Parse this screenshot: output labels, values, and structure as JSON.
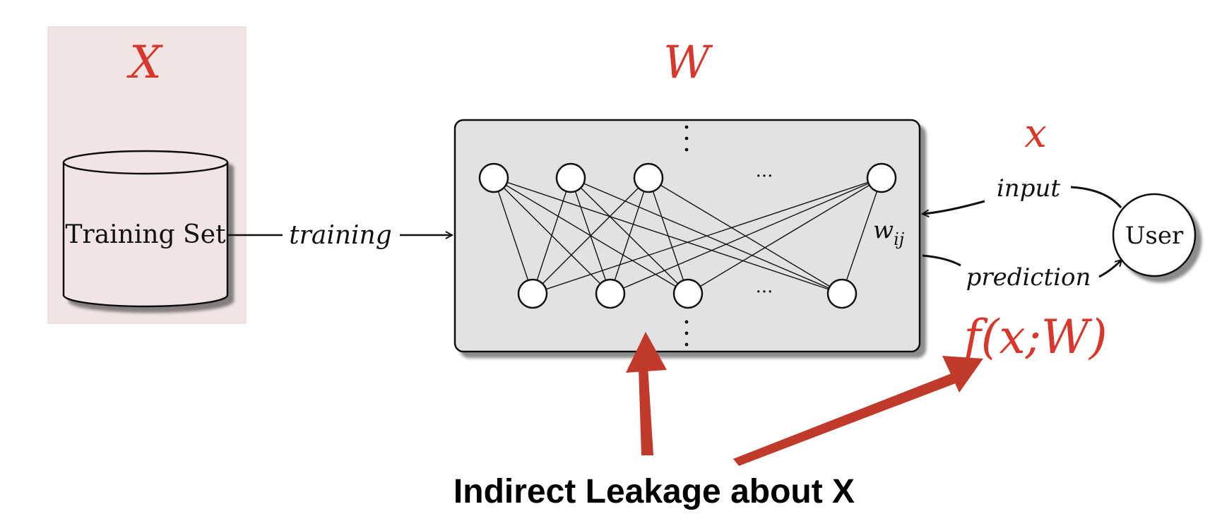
{
  "dataset": {
    "symbol": "X",
    "cylinder_label": "Training Set"
  },
  "flow": {
    "training_label": "training"
  },
  "network": {
    "weights_symbol": "W",
    "weight_label": "w",
    "weight_subscript": "ij",
    "ellipsis": "···",
    "top_input_nodes": 4,
    "bottom_nodes": 4
  },
  "user": {
    "label": "User",
    "input_symbol": "x",
    "input_label": "input",
    "prediction_label": "prediction",
    "output_formula": "f(x;W)"
  },
  "caption": {
    "text": "Indirect Leakage about X"
  },
  "colors": {
    "accent_red": "#d8372c",
    "arrow_red": "#c0392b",
    "panel_pink": "#f1e4e4",
    "network_gray": "#e2e2e2"
  }
}
